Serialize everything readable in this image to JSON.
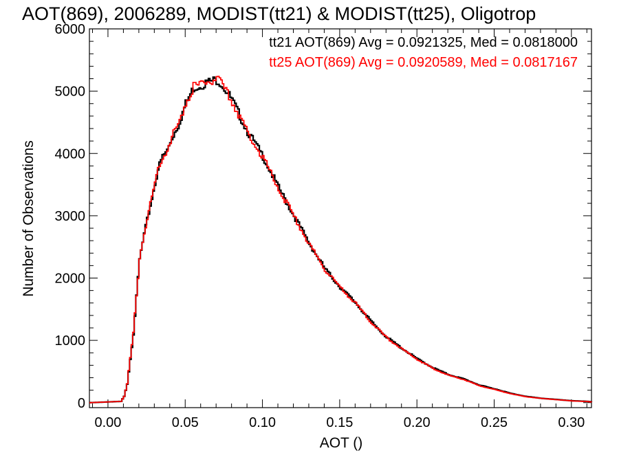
{
  "chart_data": {
    "type": "line",
    "title": "AOT(869), 2006289, MODIST(tt21) & MODIST(tt25), Oligotrop",
    "xlabel": "AOT ()",
    "ylabel": "Number of Observations",
    "xlim": [
      -0.012,
      0.313
    ],
    "ylim": [
      -80,
      6000
    ],
    "xticks": [
      0.0,
      0.05,
      0.1,
      0.15,
      0.2,
      0.25,
      0.3
    ],
    "xtick_labels": [
      "0.00",
      "0.05",
      "0.10",
      "0.15",
      "0.20",
      "0.25",
      "0.30"
    ],
    "yticks": [
      0,
      1000,
      2000,
      3000,
      4000,
      5000,
      6000
    ],
    "ytick_labels": [
      "0",
      "1000",
      "2000",
      "3000",
      "4000",
      "5000",
      "6000"
    ],
    "grid": false,
    "legend_position": "top-right",
    "step": true,
    "series": [
      {
        "name": "tt21 AOT(869) Avg = 0.0921325, Med = 0.0818000",
        "color": "#000000",
        "x": [
          -0.012,
          0.008,
          0.01,
          0.012,
          0.014,
          0.016,
          0.018,
          0.02,
          0.023,
          0.026,
          0.029,
          0.032,
          0.035,
          0.038,
          0.041,
          0.045,
          0.05,
          0.055,
          0.06,
          0.065,
          0.07,
          0.072,
          0.075,
          0.08,
          0.085,
          0.09,
          0.1,
          0.11,
          0.12,
          0.13,
          0.14,
          0.15,
          0.16,
          0.17,
          0.18,
          0.19,
          0.2,
          0.21,
          0.22,
          0.23,
          0.24,
          0.25,
          0.26,
          0.27,
          0.28,
          0.29,
          0.3,
          0.31,
          0.313
        ],
        "y": [
          0,
          20,
          100,
          300,
          700,
          1100,
          1700,
          2300,
          2700,
          3050,
          3400,
          3750,
          3950,
          4050,
          4250,
          4450,
          4800,
          5050,
          5100,
          5150,
          5180,
          5150,
          5050,
          4850,
          4600,
          4350,
          3950,
          3450,
          3000,
          2550,
          2150,
          1850,
          1600,
          1300,
          1050,
          870,
          700,
          560,
          450,
          380,
          280,
          220,
          150,
          100,
          70,
          50,
          30,
          20,
          10
        ]
      },
      {
        "name": "tt25 AOT(869) Avg = 0.0920589, Med = 0.0817167",
        "color": "#ff0000",
        "x": [
          -0.012,
          0.008,
          0.01,
          0.012,
          0.014,
          0.016,
          0.018,
          0.02,
          0.023,
          0.026,
          0.029,
          0.032,
          0.035,
          0.038,
          0.041,
          0.045,
          0.05,
          0.055,
          0.06,
          0.065,
          0.07,
          0.072,
          0.075,
          0.08,
          0.085,
          0.09,
          0.1,
          0.11,
          0.12,
          0.13,
          0.14,
          0.15,
          0.16,
          0.17,
          0.18,
          0.19,
          0.2,
          0.21,
          0.22,
          0.23,
          0.24,
          0.25,
          0.26,
          0.27,
          0.28,
          0.29,
          0.3,
          0.31,
          0.313
        ],
        "y": [
          0,
          20,
          100,
          300,
          720,
          1120,
          1720,
          2320,
          2720,
          3070,
          3420,
          3760,
          3960,
          4060,
          4270,
          4460,
          4820,
          5070,
          5110,
          5160,
          5190,
          5140,
          5040,
          4830,
          4590,
          4330,
          3930,
          3440,
          2990,
          2540,
          2140,
          1840,
          1590,
          1290,
          1040,
          860,
          690,
          550,
          440,
          370,
          270,
          210,
          145,
          95,
          68,
          48,
          28,
          18,
          8
        ]
      }
    ]
  }
}
